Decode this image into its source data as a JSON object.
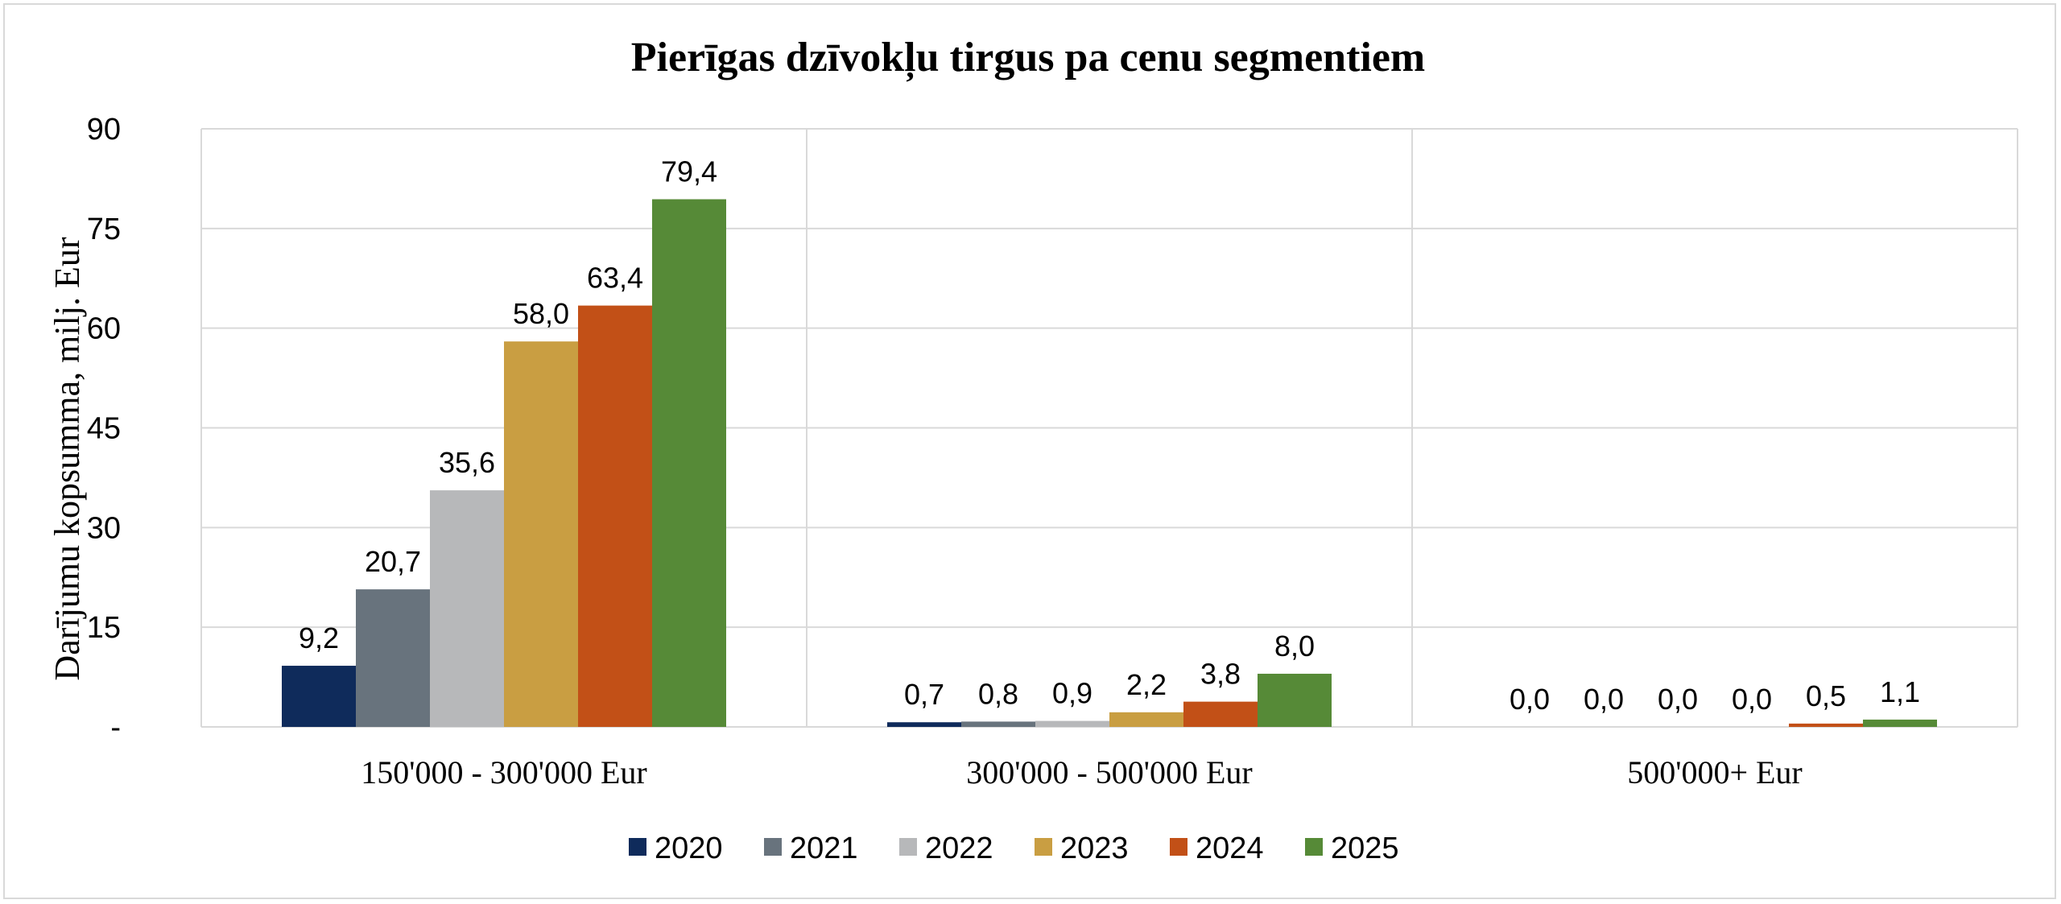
{
  "chart_data": {
    "type": "bar",
    "title": "Pierīgas dzīvokļu tirgus pa cenu segmentiem",
    "ylabel": "Darījumu kopsumma, milj. Eur",
    "xlabel": "",
    "ylim": [
      0,
      90
    ],
    "yticks": [
      0,
      15,
      30,
      45,
      60,
      75,
      90
    ],
    "ytick_labels": [
      "-",
      "15",
      "30",
      "45",
      "60",
      "75",
      "90"
    ],
    "categories": [
      "150'000 - 300'000 Eur",
      "300'000 - 500'000 Eur",
      "500'000+ Eur"
    ],
    "grid": true,
    "legend_position": "bottom",
    "series": [
      {
        "name": "2020",
        "color": "#0f2b5b",
        "values": [
          9.2,
          0.7,
          0.0
        ],
        "labels": [
          "9,2",
          "0,7",
          "0,0"
        ]
      },
      {
        "name": "2021",
        "color": "#68737d",
        "values": [
          20.7,
          0.8,
          0.0
        ],
        "labels": [
          "20,7",
          "0,8",
          "0,0"
        ]
      },
      {
        "name": "2022",
        "color": "#b7b8ba",
        "values": [
          35.6,
          0.9,
          0.0
        ],
        "labels": [
          "35,6",
          "0,9",
          "0,0"
        ]
      },
      {
        "name": "2023",
        "color": "#c99e42",
        "values": [
          58.0,
          2.2,
          0.0
        ],
        "labels": [
          "58,0",
          "2,2",
          "0,0"
        ]
      },
      {
        "name": "2024",
        "color": "#c25017",
        "values": [
          63.4,
          3.8,
          0.5
        ],
        "labels": [
          "63,4",
          "3,8",
          "0,5"
        ]
      },
      {
        "name": "2025",
        "color": "#568a37",
        "values": [
          79.4,
          8.0,
          1.1
        ],
        "labels": [
          "79,4",
          "8,0",
          "1,1"
        ]
      }
    ]
  }
}
